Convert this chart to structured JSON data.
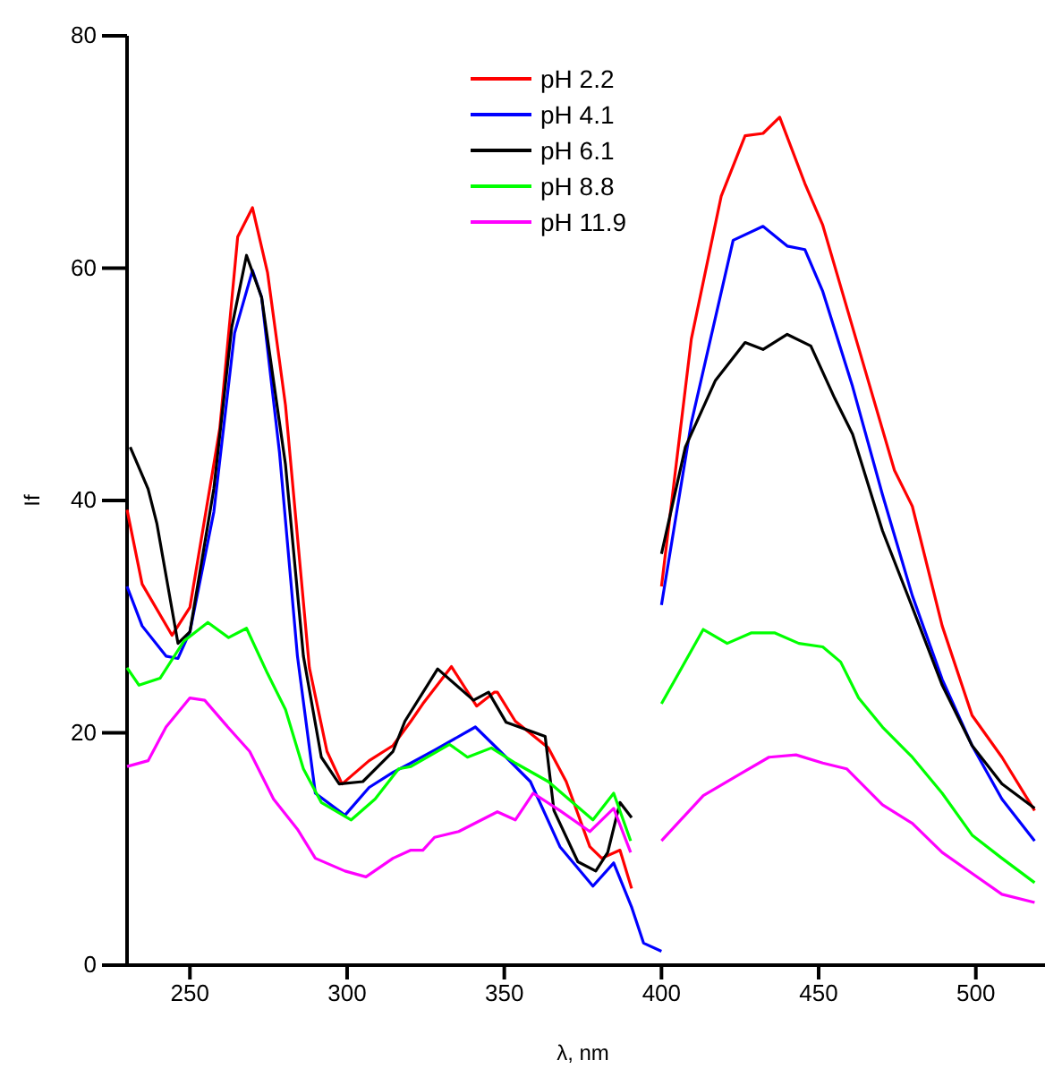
{
  "chart_data": {
    "type": "line",
    "xlabel": "λ, nm",
    "ylabel": "If",
    "xlim": [
      230,
      522
    ],
    "ylim": [
      0,
      80
    ],
    "xticks": [
      250,
      300,
      350,
      400,
      450,
      500
    ],
    "yticks": [
      0,
      20,
      40,
      60,
      80
    ],
    "grid": false,
    "legend": "top",
    "line_style": "solid",
    "marker": "none",
    "series": [
      {
        "name": "pH 2.2",
        "color": "#ff0000",
        "x": [
          230,
          234.8,
          244.3,
          250,
          259.5,
          265.2,
          269.9,
          274.7,
          280.4,
          288,
          293.6,
          298.4,
          307,
          314.6,
          320.3,
          324.1,
          333.2,
          341.2,
          346.9,
          347.8,
          353.5,
          364,
          369.7,
          377.2,
          381,
          386.8,
          390.5,
          395,
          400,
          409.5,
          419,
          426.6,
          432.3,
          437.6,
          445.6,
          451.3,
          460.8,
          474.1,
          479.8,
          489.3,
          498.8,
          508.3,
          518.7
        ],
        "values": [
          39.2,
          32.8,
          28.4,
          30.8,
          46.2,
          62.7,
          65.2,
          59.6,
          48.2,
          25.6,
          18.4,
          15.6,
          17.6,
          18.9,
          21,
          22.5,
          25.7,
          22.3,
          23.5,
          23.5,
          21,
          18.7,
          15.8,
          10.2,
          9.2,
          9.9,
          6.6,
          null,
          32.6,
          53.9,
          66.2,
          71.4,
          71.6,
          73,
          67.3,
          63.7,
          54.9,
          42.6,
          39.5,
          29.2,
          21.5,
          17.9,
          13.3
        ]
      },
      {
        "name": "pH 4.1",
        "color": "#0000ff",
        "x": [
          230,
          234.8,
          242.4,
          246.2,
          250,
          257.6,
          264.2,
          269.9,
          272.8,
          278.5,
          284.2,
          289.9,
          299.3,
          307,
          314.6,
          320.3,
          327.8,
          340.8,
          348.7,
          358.3,
          367.7,
          378.2,
          384.8,
          390.5,
          394.3,
          400,
          null,
          400,
          409.5,
          422.8,
          432.3,
          440,
          445.6,
          451.3,
          460.8,
          470.3,
          479.8,
          489.3,
          498.8,
          508.3,
          518.7
        ],
        "values": [
          32.6,
          29.2,
          26.6,
          26.4,
          28.7,
          39,
          54.4,
          59.8,
          57.5,
          44.1,
          26.6,
          14.8,
          12.9,
          15.3,
          16.6,
          17.4,
          18.5,
          20.5,
          18.4,
          15.8,
          10.2,
          6.8,
          8.8,
          5,
          1.9,
          1.2,
          null,
          31,
          46.7,
          62.4,
          63.6,
          61.9,
          61.6,
          58,
          49.8,
          40.5,
          31.8,
          24.6,
          18.9,
          14.3,
          10.7
        ]
      },
      {
        "name": "pH 6.1",
        "color": "#000000",
        "x": [
          231,
          236.7,
          239.5,
          246.2,
          250,
          257.6,
          263.3,
          268,
          272.8,
          280.4,
          286.1,
          291.8,
          297.5,
          305,
          314.6,
          318.4,
          328.8,
          340.2,
          345,
          350.6,
          363,
          365.8,
          373.4,
          379.1,
          382.9,
          386.8,
          390.5,
          395,
          400,
          407.6,
          417.1,
          426.6,
          432.3,
          440,
          447.5,
          455.1,
          460.8,
          470.3,
          479.8,
          489.3,
          498.8,
          508.3,
          518.7
        ],
        "values": [
          44.6,
          41,
          38,
          27.7,
          28.7,
          41,
          54.9,
          61.1,
          57.5,
          43.1,
          26.6,
          17.9,
          15.6,
          15.8,
          18.4,
          21,
          25.5,
          22.8,
          23.5,
          20.9,
          19.7,
          13.3,
          8.9,
          8.1,
          9.7,
          14,
          12.7,
          null,
          35.4,
          44.6,
          50.3,
          53.6,
          53,
          54.3,
          53.3,
          48.8,
          45.7,
          37.4,
          30.8,
          24.1,
          18.9,
          15.6,
          13.5
        ]
      },
      {
        "name": "pH 8.8",
        "color": "#00ff00",
        "x": [
          230,
          233.8,
          240.5,
          248.1,
          255.7,
          262.3,
          268,
          274.7,
          280.4,
          286.1,
          291.8,
          301.3,
          308.9,
          316.4,
          320.3,
          332.6,
          338.3,
          345.9,
          353.5,
          364,
          378.2,
          384.8,
          390.2,
          395,
          400,
          413.3,
          420.9,
          428.5,
          436.1,
          443.7,
          451.3,
          457,
          462.7,
          470.3,
          479.8,
          489.3,
          498.8,
          508.3,
          518.7
        ],
        "values": [
          25.6,
          24.1,
          24.7,
          27.9,
          29.5,
          28.2,
          29,
          25.1,
          22,
          16.9,
          14,
          12.5,
          14.3,
          16.9,
          17.1,
          19,
          17.9,
          18.7,
          17.4,
          15.8,
          12.5,
          14.8,
          10.7,
          null,
          22.5,
          28.9,
          27.7,
          28.6,
          28.6,
          27.7,
          27.4,
          26.1,
          23,
          20.5,
          17.9,
          14.8,
          11.2,
          9.2,
          7.1
        ]
      },
      {
        "name": "pH 11.9",
        "color": "#ff00ff",
        "x": [
          230,
          236.7,
          242.4,
          250,
          254.7,
          261.4,
          269,
          276.6,
          284.2,
          289.9,
          299.3,
          306,
          314.6,
          320.3,
          324.1,
          327.8,
          335.5,
          347.8,
          353.5,
          359.2,
          367.7,
          377.2,
          384.8,
          390.2,
          395,
          400,
          413.3,
          424.7,
          434.2,
          442.8,
          451.3,
          458.9,
          470.3,
          479.8,
          489.3,
          498.8,
          508.3,
          518.7
        ],
        "values": [
          17.1,
          17.6,
          20.5,
          23,
          22.8,
          20.7,
          18.4,
          14.3,
          11.7,
          9.2,
          8.1,
          7.6,
          9.2,
          9.9,
          9.9,
          11,
          11.5,
          13.2,
          12.5,
          14.8,
          13.3,
          11.5,
          13.5,
          9.7,
          null,
          10.7,
          14.6,
          16.4,
          17.9,
          18.1,
          17.4,
          16.9,
          13.8,
          12.2,
          9.7,
          7.9,
          6.1,
          5.4
        ]
      }
    ]
  }
}
